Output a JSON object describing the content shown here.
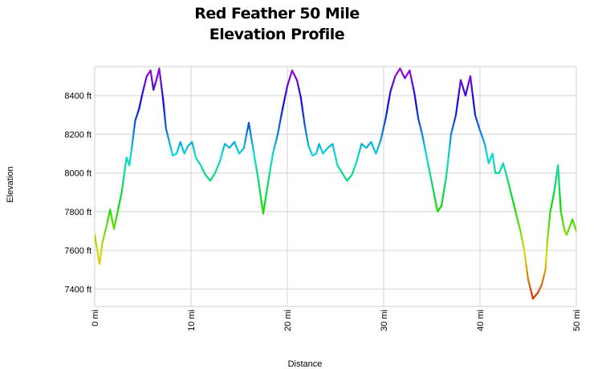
{
  "chart_data": {
    "type": "line",
    "title_lines": [
      "Red Feather 50 Mile",
      "Elevation Profile"
    ],
    "xlabel": "Distance",
    "ylabel": "Elevation",
    "xlim": [
      0,
      50
    ],
    "ylim": [
      7310,
      8550
    ],
    "x_ticks": [
      0,
      10,
      20,
      30,
      40,
      50
    ],
    "x_tick_labels": [
      "0 mi",
      "10 mi",
      "20 mi",
      "30 mi",
      "40 mi",
      "50 mi"
    ],
    "y_ticks": [
      7400,
      7600,
      7800,
      8000,
      8200,
      8400
    ],
    "y_tick_labels": [
      "7400 ft",
      "7600 ft",
      "7800 ft",
      "8000 ft",
      "8200 ft",
      "8400 ft"
    ],
    "grid": true,
    "color_scale": "elevation-rainbow (red low to violet high)",
    "series": [
      {
        "x": [
          0,
          0.5,
          0.8,
          1.2,
          1.6,
          2.0,
          2.3,
          2.8,
          3.3,
          3.6,
          3.9,
          4.2,
          4.6,
          5.0,
          5.4,
          5.8,
          6.1,
          6.4,
          6.7,
          7.1,
          7.4,
          7.8,
          8.1,
          8.5,
          8.9,
          9.3,
          9.7,
          10.1,
          10.5,
          11.0,
          11.5,
          12.0,
          12.5,
          13.0,
          13.5,
          14.0,
          14.5,
          15.0,
          15.5,
          16.0,
          16.5,
          17.0,
          17.5,
          18.0,
          18.5,
          19.0,
          19.5,
          20.0,
          20.5,
          21.0,
          21.4,
          21.8,
          22.2,
          22.6,
          23.0,
          23.3,
          23.7,
          24.2,
          24.7,
          25.2,
          25.7,
          26.2,
          26.7,
          27.2,
          27.7,
          28.2,
          28.7,
          29.2,
          29.7,
          30.2,
          30.7,
          31.2,
          31.7,
          32.2,
          32.7,
          33.2,
          33.6,
          34.0,
          34.4,
          34.8,
          35.2,
          35.6,
          36.0,
          36.5,
          37.0,
          37.5,
          38.0,
          38.5,
          39.0,
          39.5,
          40.0,
          40.5,
          40.9,
          41.3,
          41.6,
          42.0,
          42.4,
          42.8,
          43.2,
          43.7,
          44.2,
          44.6,
          45.0,
          45.5,
          46.0,
          46.4,
          46.8,
          47.0,
          47.3,
          47.7,
          48.1,
          48.4,
          48.8,
          49.0,
          49.3,
          49.6,
          50.0
        ],
        "y": [
          7680,
          7530,
          7640,
          7720,
          7810,
          7710,
          7780,
          7900,
          8080,
          8040,
          8150,
          8270,
          8330,
          8420,
          8500,
          8530,
          8430,
          8480,
          8540,
          8380,
          8230,
          8150,
          8090,
          8100,
          8160,
          8100,
          8140,
          8160,
          8080,
          8040,
          7990,
          7960,
          8000,
          8060,
          8150,
          8130,
          8160,
          8100,
          8130,
          8260,
          8110,
          7960,
          7790,
          7950,
          8100,
          8200,
          8330,
          8450,
          8530,
          8480,
          8390,
          8250,
          8140,
          8090,
          8100,
          8150,
          8100,
          8130,
          8150,
          8040,
          8000,
          7960,
          7990,
          8060,
          8150,
          8130,
          8160,
          8100,
          8170,
          8280,
          8420,
          8500,
          8540,
          8490,
          8530,
          8410,
          8280,
          8200,
          8100,
          8000,
          7900,
          7800,
          7830,
          7980,
          8200,
          8300,
          8480,
          8400,
          8500,
          8300,
          8220,
          8150,
          8050,
          8100,
          8000,
          8000,
          8050,
          7980,
          7900,
          7800,
          7700,
          7600,
          7450,
          7350,
          7380,
          7420,
          7500,
          7650,
          7800,
          7900,
          8040,
          7800,
          7700,
          7680,
          7720,
          7760,
          7700
        ]
      }
    ]
  }
}
